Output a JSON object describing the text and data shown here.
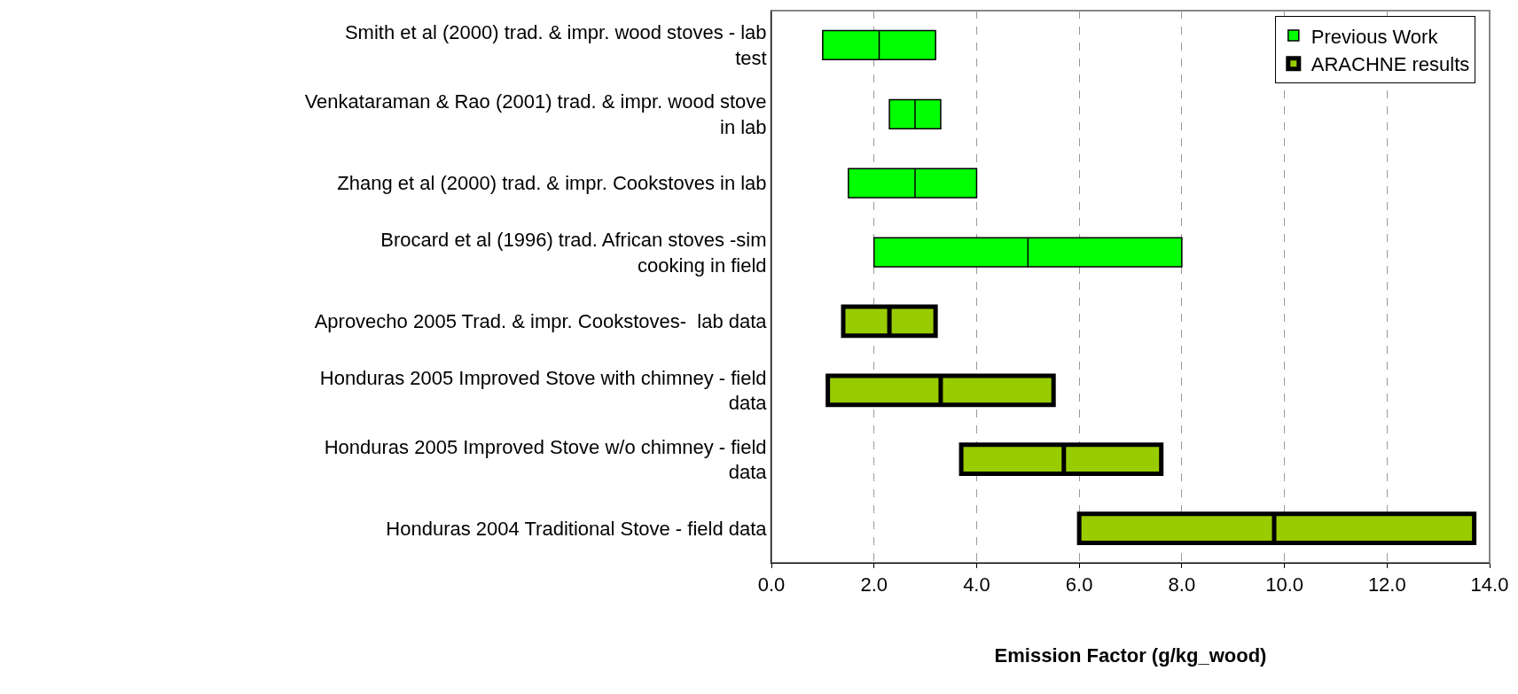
{
  "chart_data": {
    "type": "box",
    "orientation": "horizontal",
    "categories": [
      "Smith et al (2000) trad. & impr. wood stoves - lab test",
      "Venkataraman & Rao (2001) trad. & impr. wood stove in lab",
      "Zhang et al (2000) trad. & impr. Cookstoves in lab",
      "Brocard et al (1996) trad. African stoves -sim cooking in field",
      "Aprovecho 2005 Trad. & impr. Cookstoves-  lab data",
      "Honduras 2005 Improved Stove with chimney - field data",
      "Honduras 2005 Improved Stove w/o chimney - field data",
      "Honduras 2004 Traditional Stove - field data"
    ],
    "series": [
      {
        "name": "Previous Work",
        "color": "#00ff00",
        "boxes": [
          {
            "low": 1.0,
            "q1": 1.0,
            "median": 2.1,
            "q3": 3.2,
            "high": 3.2
          },
          {
            "low": 2.3,
            "q1": 2.3,
            "median": 2.8,
            "q3": 3.3,
            "high": 3.3
          },
          {
            "low": 1.5,
            "q1": 1.5,
            "median": 2.8,
            "q3": 4.0,
            "high": 4.0
          },
          {
            "low": 2.0,
            "q1": 2.0,
            "median": 5.0,
            "q3": 8.0,
            "high": 8.0
          },
          null,
          null,
          null,
          null
        ]
      },
      {
        "name": "ARACHNE results",
        "color": "#99cc00",
        "boxes": [
          null,
          null,
          null,
          null,
          {
            "low": 1.4,
            "q1": 1.4,
            "median": 2.3,
            "q3": 3.2,
            "high": 3.2
          },
          {
            "low": 1.1,
            "q1": 1.1,
            "median": 3.3,
            "q3": 5.5,
            "high": 5.5
          },
          {
            "low": 3.7,
            "q1": 3.7,
            "median": 5.7,
            "q3": 7.6,
            "high": 7.6
          },
          {
            "low": 6.0,
            "q1": 6.0,
            "median": 9.8,
            "q3": 13.7,
            "high": 13.7
          }
        ]
      }
    ],
    "xlabel": "Emission Factor (g/kg_wood)",
    "xlim": [
      0,
      14
    ],
    "xticks": [
      {
        "value": 0,
        "label": "0.0"
      },
      {
        "value": 2,
        "label": "2.0"
      },
      {
        "value": 4,
        "label": "4.0"
      },
      {
        "value": 6,
        "label": "6.0"
      },
      {
        "value": 8,
        "label": "8.0"
      },
      {
        "value": 10,
        "label": "10.0"
      },
      {
        "value": 12,
        "label": "12.0"
      },
      {
        "value": 14,
        "label": "14.0"
      }
    ],
    "grid": "x",
    "legend": "top right"
  }
}
